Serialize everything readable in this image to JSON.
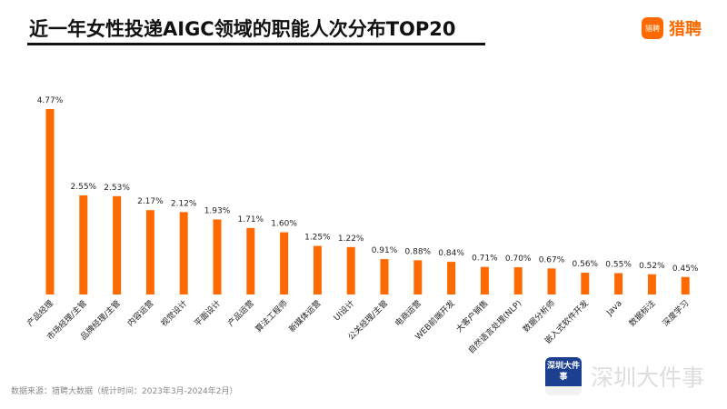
{
  "header": {
    "title": "近一年女性投递AIGC领域的职能人次分布TOP20",
    "brand": "猎聘",
    "brand_icon": "猎聘"
  },
  "footer": {
    "source": "数据来源：猎聘大数据（统计时间：2023年3月-2024年2月）",
    "watermark": "深圳大件事",
    "watermark_icon": "深圳大件事"
  },
  "chart_data": {
    "type": "bar",
    "title": "近一年女性投递AIGC领域的职能人次分布TOP20",
    "categories": [
      "产品经理",
      "市场经理/主管",
      "品牌经理/主管",
      "内容运营",
      "视觉设计",
      "平面设计",
      "产品运营",
      "算法工程师",
      "新媒体运营",
      "UI设计",
      "公关经理/主管",
      "电商运营",
      "WEB前端开发",
      "大客户销售",
      "自然语言处理(NLP)",
      "数据分析师",
      "嵌入式软件开发",
      "Java",
      "数据标注",
      "深度学习"
    ],
    "values": [
      4.77,
      2.55,
      2.53,
      2.17,
      2.12,
      1.93,
      1.71,
      1.6,
      1.25,
      1.22,
      0.91,
      0.88,
      0.84,
      0.71,
      0.7,
      0.67,
      0.56,
      0.55,
      0.52,
      0.45
    ],
    "labels": [
      "4.77%",
      "2.55%",
      "2.53%",
      "2.17%",
      "2.12%",
      "1.93%",
      "1.71%",
      "1.60%",
      "1.25%",
      "1.22%",
      "0.91%",
      "0.88%",
      "0.84%",
      "0.71%",
      "0.70%",
      "0.67%",
      "0.56%",
      "0.55%",
      "0.52%",
      "0.45%"
    ],
    "unit": "%",
    "ylim": [
      0,
      4.77
    ],
    "grid": false,
    "bar_color": "#ff6a00"
  }
}
